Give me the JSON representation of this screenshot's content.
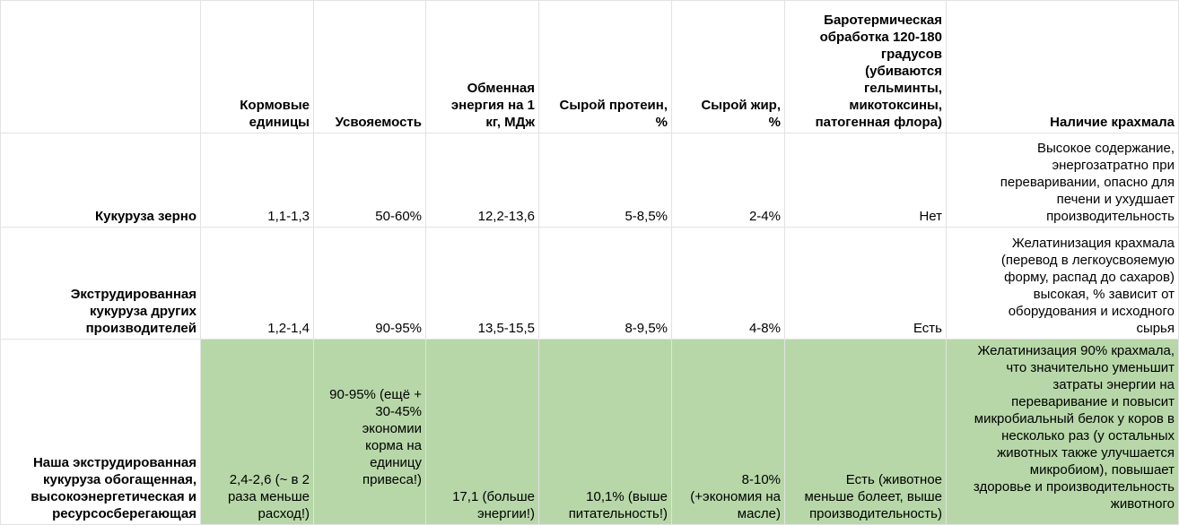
{
  "table": {
    "headers": [
      "",
      "Кормовые\nединицы",
      "Усвояемость",
      "Обменная\nэнергия на 1\nкг, МДж",
      "Сырой протеин,\n%",
      "Сырой жир,\n%",
      "Баротермическая\nобработка 120-180\nградусов\n(убиваются\nгельминты,\nмикотоксины,\nпатогенная флора)",
      "Наличие крахмала"
    ],
    "rows": [
      {
        "label": "Кукуруза зерно",
        "feed_units": "1,1-1,3",
        "digestibility": "50-60%",
        "energy": "12,2-13,6",
        "protein": "5-8,5%",
        "fat": "2-4%",
        "barothermal": "Нет",
        "starch": "Высокое содержание,\nэнергозатратно при\nпереваривании, опасно для\nпечени и ухудшает\nпроизводительность"
      },
      {
        "label": "Экструдированная\nкукуруза других\nпроизводителей",
        "feed_units": "1,2-1,4",
        "digestibility": "90-95%",
        "energy": "13,5-15,5",
        "protein": "8-9,5%",
        "fat": "4-8%",
        "barothermal": "Есть",
        "starch": "Желатинизация крахмала\n(перевод в легкоусвояемую\nформу, распад до сахаров)\nвысокая, % зависит от\nоборудования и исходного\nсырья"
      },
      {
        "label": "Наша экструдированная\nкукуруза обогащенная,\nвысокоэнергетическая и\nресурсосберегающая",
        "feed_units": "2,4-2,6 (~ в 2\nраза меньше\nрасход!)",
        "digestibility": "90-95% (ещё +\n30-45%\nэкономии\nкорма на\nединицу\nпривеса!)",
        "energy": "17,1 (больше\nэнергии!)",
        "protein": "10,1% (выше\nпитательность!)",
        "fat": "8-10%\n(+экономия на\nмасле)",
        "barothermal": "Есть (животное\nменьше болеет, выше\nпроизводительность)",
        "starch": "Желатинизация 90% крахмала,\nчто значительно уменьшит\nзатраты энергии на\nпереваривание и повысит\nмикробиальный белок у коров в\nнесколько раз (у остальных\nживотных также улучшается\nмикробиом), повышает\nздоровье и производительность\nживотного"
      }
    ],
    "highlight_color": "#b7d7a8"
  }
}
